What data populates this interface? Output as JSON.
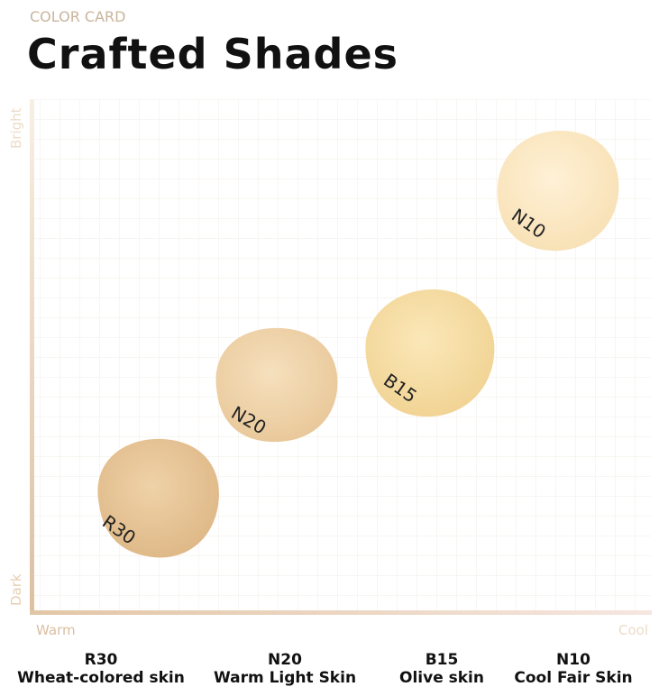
{
  "header": {
    "eyebrow": "COLOR CARD",
    "title": "Crafted Shades"
  },
  "axes": {
    "y_top": "Bright",
    "y_bottom": "Dark",
    "x_left": "Warm",
    "x_right": "Cool"
  },
  "swatches": [
    {
      "code": "R30",
      "name": "Wheat-colored skin"
    },
    {
      "code": "N20",
      "name": "Warm Light Skin"
    },
    {
      "code": "B15",
      "name": "Olive skin"
    },
    {
      "code": "N10",
      "name": "Cool Fair Skin"
    }
  ]
}
